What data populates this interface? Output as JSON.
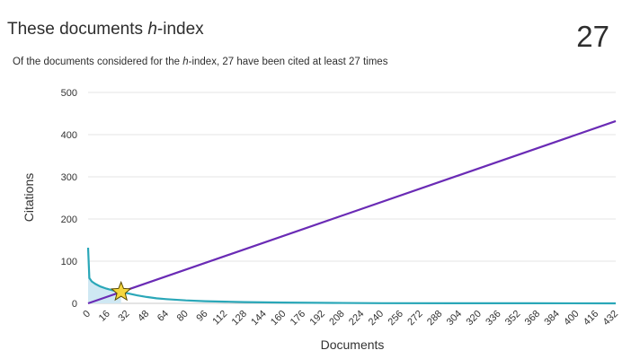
{
  "header": {
    "title_pre": "These documents ",
    "title_h": "h",
    "title_post": "-index",
    "h_index_value": "27",
    "subtitle_pre": "Of the documents considered for the ",
    "subtitle_h": "h",
    "subtitle_post": "-index, 27 have been cited at least 27 times"
  },
  "chart_data": {
    "type": "line",
    "xlabel": "Documents",
    "ylabel": "Citations",
    "xlim": [
      0,
      432
    ],
    "ylim": [
      0,
      500
    ],
    "x_ticks": [
      0,
      16,
      32,
      48,
      64,
      80,
      96,
      112,
      128,
      144,
      160,
      176,
      192,
      208,
      224,
      240,
      256,
      272,
      288,
      304,
      320,
      336,
      352,
      368,
      384,
      400,
      416,
      432
    ],
    "y_ticks": [
      0,
      100,
      200,
      300,
      400,
      500
    ],
    "grid": "horizontal",
    "series": [
      {
        "role": "citations-per-document",
        "color": "#2aa7b8",
        "fill": "#cfe8f3",
        "points": [
          [
            0,
            132
          ],
          [
            1,
            60
          ],
          [
            3,
            52
          ],
          [
            6,
            46
          ],
          [
            10,
            40
          ],
          [
            15,
            35
          ],
          [
            20,
            31
          ],
          [
            27,
            27
          ],
          [
            32,
            24
          ],
          [
            40,
            19
          ],
          [
            48,
            15
          ],
          [
            56,
            12
          ],
          [
            64,
            10
          ],
          [
            80,
            7
          ],
          [
            96,
            5
          ],
          [
            112,
            4
          ],
          [
            128,
            3
          ],
          [
            160,
            2
          ],
          [
            200,
            1
          ],
          [
            240,
            0.5
          ],
          [
            300,
            0.3
          ],
          [
            360,
            0.2
          ],
          [
            432,
            0
          ]
        ]
      },
      {
        "role": "reference-line-y-equals-x",
        "color": "#6a2bb5",
        "points": [
          [
            0,
            0
          ],
          [
            432,
            432
          ]
        ]
      }
    ],
    "marker": {
      "shape": "star",
      "x": 27,
      "y": 27,
      "color": "#f5d63d",
      "stroke": "#5a4a00"
    }
  }
}
